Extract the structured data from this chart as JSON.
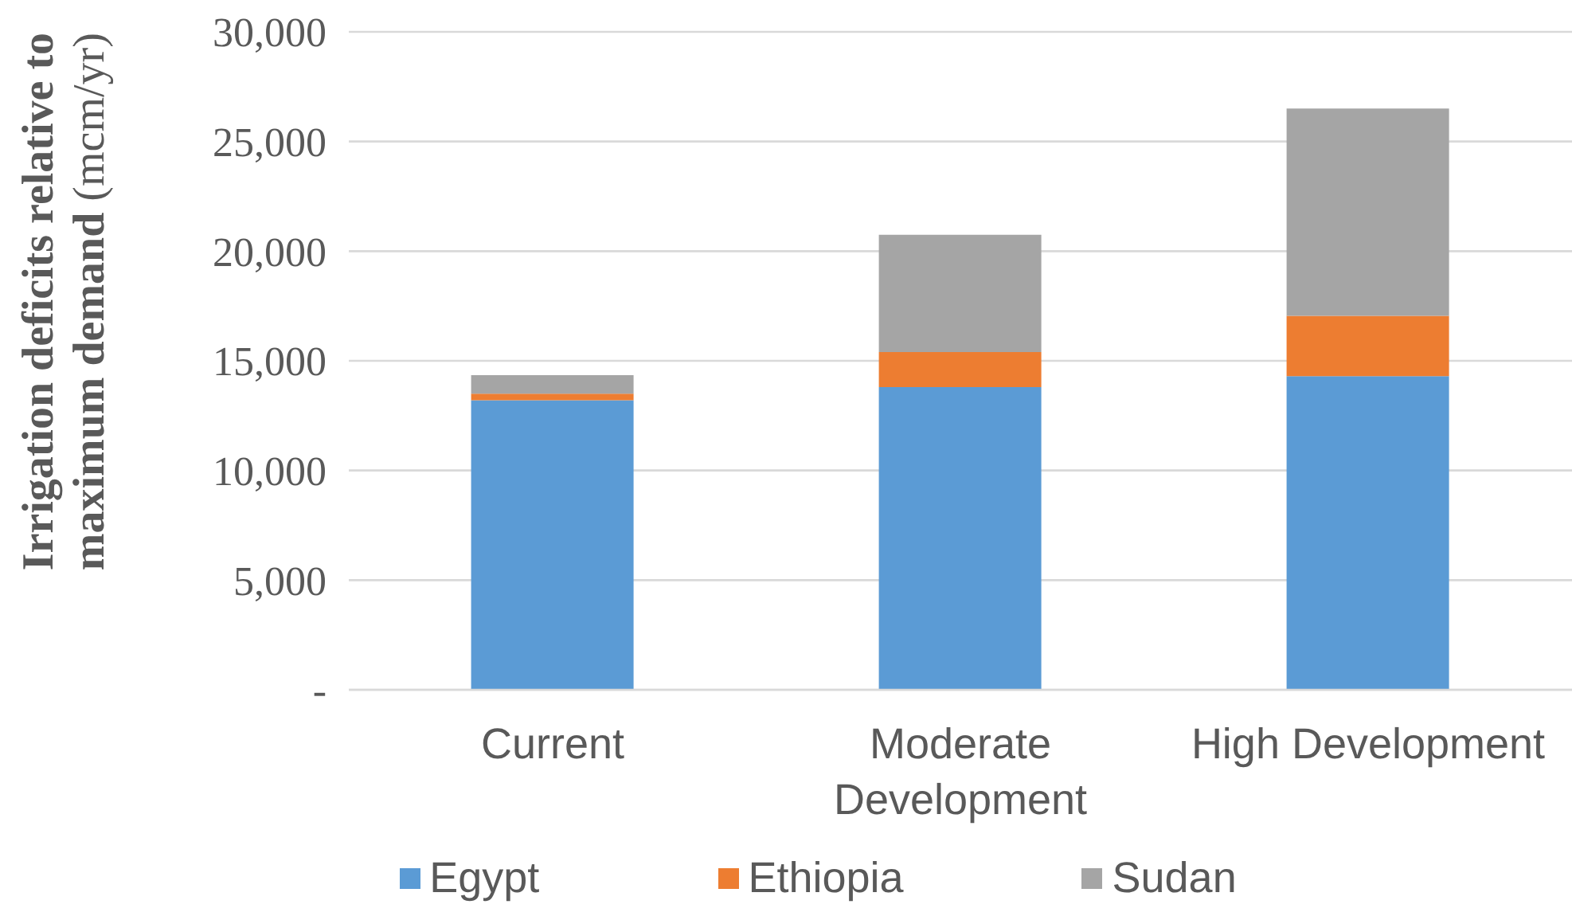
{
  "chart_data": {
    "type": "bar",
    "ylabel": "Irrigation deficits relative to maximum demand (mcm/yr)",
    "categories": [
      "Current",
      "Moderate Development",
      "High Development"
    ],
    "series": [
      {
        "name": "Egypt",
        "color": "#5b9bd5",
        "values": [
          13200,
          13800,
          14300
        ]
      },
      {
        "name": "Ethiopia",
        "color": "#ed7d31",
        "values": [
          300,
          1600,
          2750
        ]
      },
      {
        "name": "Sudan",
        "color": "#a5a5a5",
        "values": [
          850,
          5350,
          9450
        ]
      }
    ],
    "stacked": true,
    "ylim": [
      0,
      30000
    ],
    "yticks": [
      {
        "value": 0,
        "label": "-"
      },
      {
        "value": 5000,
        "label": "5,000"
      },
      {
        "value": 10000,
        "label": "10,000"
      },
      {
        "value": 15000,
        "label": "15,000"
      },
      {
        "value": 20000,
        "label": "20,000"
      },
      {
        "value": 25000,
        "label": "25,000"
      },
      {
        "value": 30000,
        "label": "30,000"
      }
    ],
    "grid": "y",
    "legend": "bottom"
  }
}
